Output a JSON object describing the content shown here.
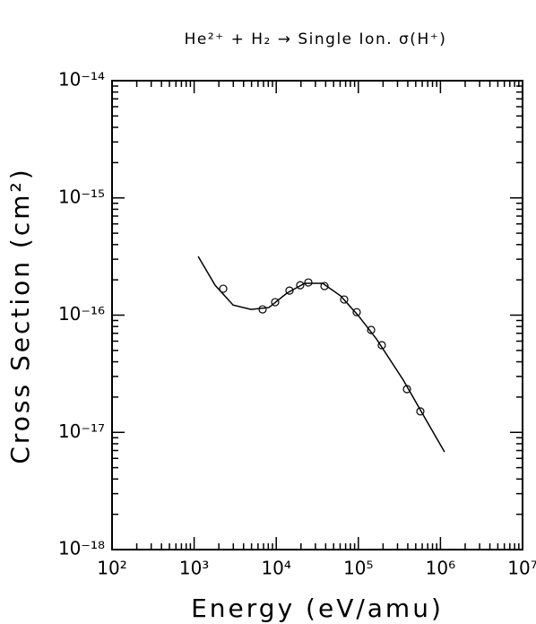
{
  "chart_data": {
    "type": "line",
    "title": "He²⁺ + H₂ → Single Ion. σ(H⁺)",
    "xlabel": "Energy (eV/amu)",
    "ylabel": "Cross Section (cm²)",
    "xscale": "log",
    "yscale": "log",
    "xlim": [
      100,
      10000000
    ],
    "ylim": [
      1e-18,
      1e-14
    ],
    "xticks": [
      {
        "value": 100,
        "label": "10²"
      },
      {
        "value": 1000,
        "label": "10³"
      },
      {
        "value": 10000,
        "label": "10⁴"
      },
      {
        "value": 100000,
        "label": "10⁵"
      },
      {
        "value": 1000000,
        "label": "10⁶"
      },
      {
        "value": 10000000,
        "label": "10⁷"
      }
    ],
    "yticks": [
      {
        "value": 1e-18,
        "label": "10⁻¹⁸"
      },
      {
        "value": 1e-17,
        "label": "10⁻¹⁷"
      },
      {
        "value": 1e-16,
        "label": "10⁻¹⁶"
      },
      {
        "value": 1e-15,
        "label": "10⁻¹⁵"
      },
      {
        "value": 1e-14,
        "label": "10⁻¹⁴"
      }
    ],
    "series": [
      {
        "style": "markers",
        "color": "#000000",
        "x": [
          2260,
          6820,
          9700,
          14500,
          19600,
          24600,
          38700,
          67200,
          95500,
          143000,
          193000,
          391000,
          569000
        ],
        "values": [
          1.68e-16,
          1.12e-16,
          1.29e-16,
          1.62e-16,
          1.8e-16,
          1.9e-16,
          1.77e-16,
          1.36e-16,
          1.06e-16,
          7.48e-17,
          5.54e-17,
          2.34e-17,
          1.51e-17
        ]
      },
      {
        "style": "line",
        "color": "#000000",
        "x": [
          1120,
          1800,
          2980,
          4920,
          8130,
          13450,
          22200,
          36800,
          60800,
          100000,
          166000,
          353000,
          662000,
          1120000
        ],
        "values": [
          3.17e-16,
          1.8e-16,
          1.22e-16,
          1.12e-16,
          1.16e-16,
          1.54e-16,
          1.87e-16,
          1.87e-16,
          1.46e-16,
          9.9e-17,
          6.27e-17,
          2.79e-17,
          1.29e-17,
          6.82e-18
        ]
      }
    ]
  }
}
